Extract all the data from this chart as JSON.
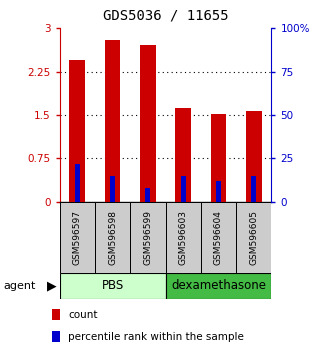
{
  "title": "GDS5036 / 11655",
  "categories": [
    "GSM596597",
    "GSM596598",
    "GSM596599",
    "GSM596603",
    "GSM596604",
    "GSM596605"
  ],
  "red_values": [
    2.45,
    2.8,
    2.72,
    1.63,
    1.52,
    1.57
  ],
  "blue_values": [
    22,
    15,
    8,
    15,
    12,
    15
  ],
  "ylim_left": [
    0,
    3
  ],
  "ylim_right": [
    0,
    100
  ],
  "yticks_left": [
    0,
    0.75,
    1.5,
    2.25,
    3
  ],
  "yticks_right": [
    0,
    25,
    50,
    75,
    100
  ],
  "ytick_labels_left": [
    "0",
    "0.75",
    "1.5",
    "2.25",
    "3"
  ],
  "ytick_labels_right": [
    "0",
    "25",
    "50",
    "75",
    "100%"
  ],
  "group_labels": [
    "PBS",
    "dexamethasone"
  ],
  "group_ranges": [
    [
      0,
      3
    ],
    [
      3,
      6
    ]
  ],
  "group_colors_pbs": "#ccffcc",
  "group_colors_dex": "#44bb44",
  "agent_label": "agent",
  "legend_labels": [
    "count",
    "percentile rank within the sample"
  ],
  "legend_colors": [
    "#cc0000",
    "#0000cc"
  ],
  "bar_width": 0.45,
  "thin_bar_width": 0.15,
  "red_color": "#cc0000",
  "blue_color": "#0000cc",
  "left_axis_color": "#cc0000",
  "right_axis_color": "#0000cc",
  "sample_box_color": "#cccccc",
  "background_color": "#ffffff"
}
